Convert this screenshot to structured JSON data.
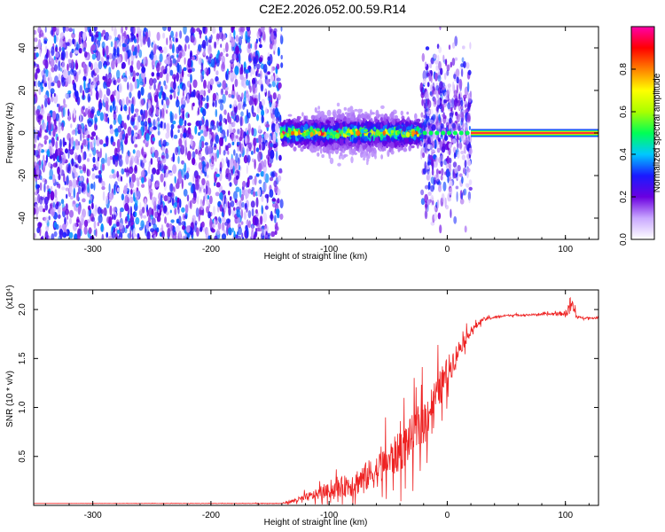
{
  "title": "C2E2.2026.052.00.59.R14",
  "chart_data": [
    {
      "type": "heatmap",
      "xlabel": "Height of straight line (km)",
      "ylabel": "Frequency (Hz)",
      "xlim": [
        -350,
        128
      ],
      "ylim": [
        -50,
        50
      ],
      "x_ticks": [
        -300,
        -200,
        -100,
        0,
        100
      ],
      "y_ticks": [
        -40,
        -20,
        0,
        20,
        40
      ],
      "colorbar": {
        "label": "Normalized spectral amplitude",
        "range": [
          0,
          1
        ],
        "ticks": [
          "0.0",
          "0.2",
          "0.4",
          "0.6",
          "0.8"
        ],
        "colors": [
          "#ffffff",
          "#c9a8ff",
          "#6a00e0",
          "#1a1aff",
          "#00c8ff",
          "#00ff55",
          "#aaff00",
          "#ffff00",
          "#ff8000",
          "#ff0000",
          "#ff00aa"
        ]
      },
      "regions": [
        {
          "x_from": -350,
          "x_to": -140,
          "freq_from": -50,
          "freq_to": 50,
          "pattern": "noise",
          "amplitude": 0.25
        },
        {
          "x_from": -140,
          "x_to": -22,
          "freq_from": -8,
          "freq_to": 8,
          "pattern": "tone",
          "amplitude": 0.5
        },
        {
          "x_from": -22,
          "x_to": 20,
          "freq_from": -40,
          "freq_to": 40,
          "pattern": "scattered",
          "amplitude": 0.2
        },
        {
          "x_from": 20,
          "x_to": 128,
          "freq_from": -1,
          "freq_to": 1,
          "pattern": "tone",
          "amplitude": 1.0
        }
      ]
    },
    {
      "type": "line",
      "xlabel": "Height of straight line (km)",
      "ylabel": "SNR (10 * v/v)",
      "y_multiplier": "(x10⁴)",
      "xlim": [
        -350,
        128
      ],
      "ylim": [
        0,
        2.2
      ],
      "x_ticks": [
        -300,
        -200,
        -100,
        0,
        100
      ],
      "y_ticks": [
        "0.5",
        "1.0",
        "1.5",
        "2.0"
      ],
      "color": "#ee2222",
      "trend": {
        "x": [
          -350,
          -140,
          -125,
          -100,
          -80,
          -60,
          -40,
          -20,
          0,
          10,
          20,
          30,
          50,
          80,
          100,
          105,
          110,
          128
        ],
        "y": [
          0.02,
          0.02,
          0.06,
          0.15,
          0.22,
          0.35,
          0.55,
          0.85,
          1.35,
          1.6,
          1.78,
          1.9,
          1.94,
          1.95,
          1.96,
          2.05,
          1.92,
          1.91
        ],
        "noise": [
          0.0,
          0.005,
          0.05,
          0.12,
          0.22,
          0.28,
          0.35,
          0.38,
          0.28,
          0.15,
          0.06,
          0.03,
          0.015,
          0.015,
          0.04,
          0.2,
          0.02,
          0.01
        ]
      }
    }
  ]
}
